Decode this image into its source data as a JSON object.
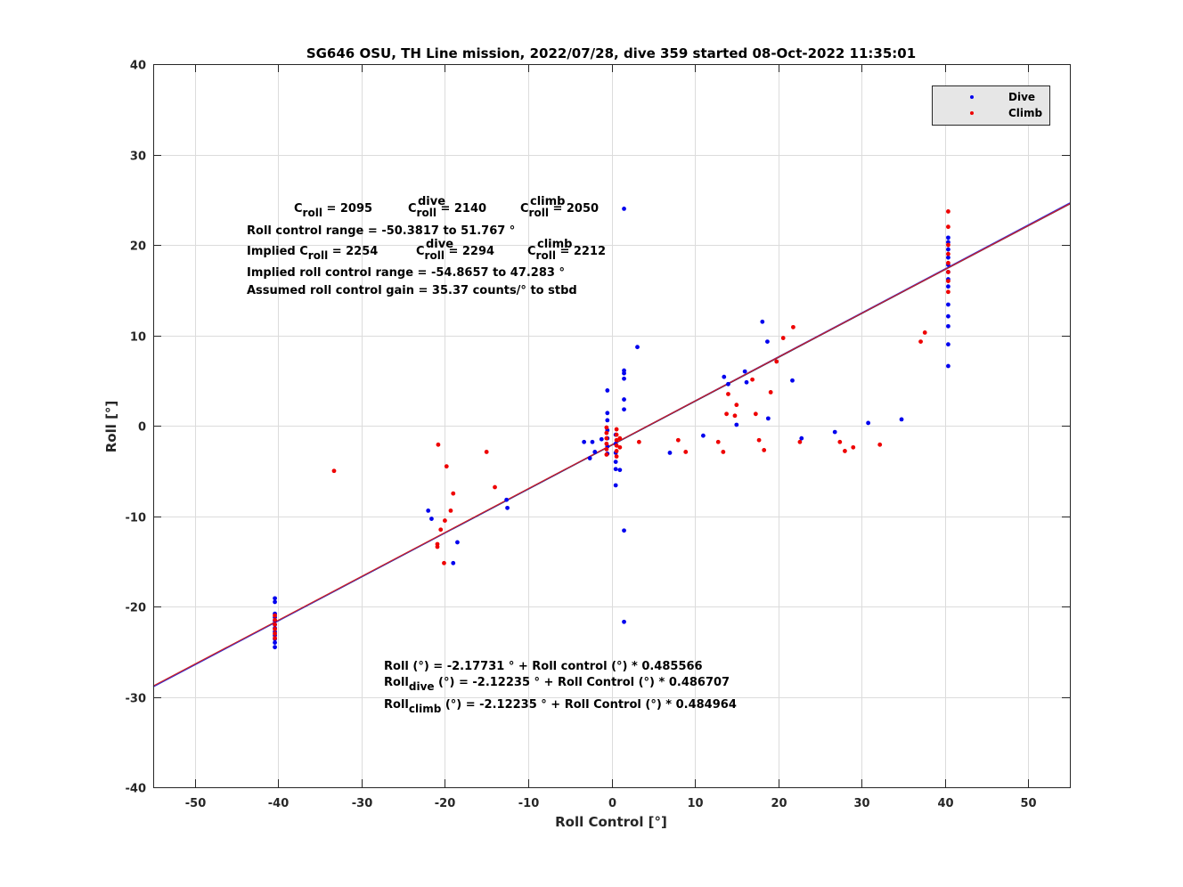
{
  "chart_data": {
    "type": "scatter",
    "title": "SG646 OSU, TH Line mission, 2022/07/28, dive 359 started 08-Oct-2022 11:35:01",
    "xlabel": "Roll Control [°]",
    "ylabel": "Roll [°]",
    "xlim": [
      -55,
      55
    ],
    "ylim": [
      -40,
      40
    ],
    "xticks": [
      -50,
      -40,
      -30,
      -20,
      -10,
      0,
      10,
      20,
      30,
      40,
      50
    ],
    "yticks": [
      -40,
      -30,
      -20,
      -10,
      0,
      10,
      20,
      30,
      40
    ],
    "xtick_labels": [
      "-50",
      "-40",
      "-30",
      "-20",
      "-10",
      "0",
      "10",
      "20",
      "30",
      "40",
      "50"
    ],
    "ytick_labels": [
      "-40",
      "-30",
      "-20",
      "-10",
      "0",
      "10",
      "20",
      "30",
      "40"
    ],
    "grid": true,
    "legend_position": "top-right",
    "series": [
      {
        "name": "Dive",
        "color": "#0000ee",
        "points": [
          [
            -40.4,
            -19.1
          ],
          [
            -40.4,
            -19.5
          ],
          [
            -40.4,
            -20.8
          ],
          [
            -40.4,
            -21.2
          ],
          [
            -40.4,
            -21.6
          ],
          [
            -40.4,
            -22.0
          ],
          [
            -40.4,
            -22.4
          ],
          [
            -40.4,
            -22.8
          ],
          [
            -40.4,
            -23.2
          ],
          [
            -40.4,
            -23.6
          ],
          [
            -40.4,
            -24.0
          ],
          [
            -40.4,
            -24.5
          ],
          [
            -22.0,
            -9.4
          ],
          [
            -21.6,
            -10.3
          ],
          [
            -19.0,
            -15.2
          ],
          [
            -18.5,
            -12.9
          ],
          [
            -12.6,
            -8.2
          ],
          [
            -12.5,
            -9.1
          ],
          [
            -3.3,
            -1.8
          ],
          [
            -2.6,
            -3.6
          ],
          [
            -2.3,
            -1.8
          ],
          [
            -2.0,
            -2.9
          ],
          [
            -1.2,
            -1.5
          ],
          [
            -0.5,
            3.9
          ],
          [
            -0.5,
            1.4
          ],
          [
            -0.5,
            0.6
          ],
          [
            -0.5,
            -0.5
          ],
          [
            -0.5,
            -1.4
          ],
          [
            -0.5,
            -2.3
          ],
          [
            -0.5,
            -3.1
          ],
          [
            0.5,
            -1.0
          ],
          [
            0.5,
            -2.0
          ],
          [
            0.5,
            -3.0
          ],
          [
            0.5,
            -4.0
          ],
          [
            0.5,
            -4.8
          ],
          [
            0.5,
            -6.6
          ],
          [
            1.0,
            -4.9
          ],
          [
            1.5,
            24.0
          ],
          [
            1.5,
            6.1
          ],
          [
            1.5,
            5.8
          ],
          [
            1.5,
            5.2
          ],
          [
            1.5,
            2.9
          ],
          [
            1.5,
            1.8
          ],
          [
            1.5,
            -11.6
          ],
          [
            1.5,
            -21.7
          ],
          [
            3.1,
            8.7
          ],
          [
            7.0,
            -3.0
          ],
          [
            11.0,
            -1.1
          ],
          [
            13.5,
            5.4
          ],
          [
            14.0,
            4.6
          ],
          [
            15.0,
            0.1
          ],
          [
            16.0,
            6.0
          ],
          [
            16.2,
            4.8
          ],
          [
            18.1,
            11.5
          ],
          [
            18.7,
            9.3
          ],
          [
            18.8,
            0.8
          ],
          [
            21.7,
            5.0
          ],
          [
            22.8,
            -1.4
          ],
          [
            26.8,
            -0.7
          ],
          [
            30.8,
            0.3
          ],
          [
            34.8,
            0.7
          ],
          [
            40.4,
            6.6
          ],
          [
            40.4,
            9.0
          ],
          [
            40.4,
            11.0
          ],
          [
            40.4,
            12.1
          ],
          [
            40.4,
            13.4
          ],
          [
            40.4,
            15.4
          ],
          [
            40.4,
            16.2
          ],
          [
            40.4,
            17.0
          ],
          [
            40.4,
            17.8
          ],
          [
            40.4,
            18.6
          ],
          [
            40.4,
            19.5
          ],
          [
            40.4,
            20.3
          ],
          [
            40.4,
            20.8
          ]
        ]
      },
      {
        "name": "Climb",
        "color": "#ee0000",
        "points": [
          [
            -40.4,
            -21.0
          ],
          [
            -40.4,
            -21.5
          ],
          [
            -40.4,
            -22.0
          ],
          [
            -40.4,
            -22.5
          ],
          [
            -40.4,
            -23.0
          ],
          [
            -40.4,
            -23.5
          ],
          [
            -33.3,
            -5.0
          ],
          [
            -20.8,
            -2.1
          ],
          [
            -20.5,
            -11.5
          ],
          [
            -20.0,
            -10.5
          ],
          [
            -19.8,
            -4.5
          ],
          [
            -20.1,
            -15.2
          ],
          [
            -20.9,
            -13.4
          ],
          [
            -20.9,
            -13.1
          ],
          [
            -19.3,
            -9.4
          ],
          [
            -19.0,
            -7.5
          ],
          [
            -15.0,
            -2.9
          ],
          [
            -14.0,
            -6.8
          ],
          [
            -0.6,
            -0.2
          ],
          [
            -0.6,
            -0.8
          ],
          [
            -0.6,
            -1.4
          ],
          [
            -0.6,
            -2.0
          ],
          [
            -0.6,
            -2.6
          ],
          [
            -0.6,
            -3.2
          ],
          [
            0.6,
            -0.4
          ],
          [
            0.6,
            -1.0
          ],
          [
            0.6,
            -1.6
          ],
          [
            0.6,
            -2.2
          ],
          [
            0.6,
            -2.8
          ],
          [
            0.6,
            -3.4
          ],
          [
            1.0,
            -1.4
          ],
          [
            1.0,
            -2.4
          ],
          [
            3.3,
            -1.8
          ],
          [
            8.0,
            -1.6
          ],
          [
            8.9,
            -2.9
          ],
          [
            12.8,
            -1.8
          ],
          [
            13.4,
            -2.9
          ],
          [
            13.8,
            1.3
          ],
          [
            14.0,
            3.5
          ],
          [
            14.8,
            1.1
          ],
          [
            15.0,
            2.3
          ],
          [
            16.9,
            5.1
          ],
          [
            17.3,
            1.3
          ],
          [
            17.7,
            -1.6
          ],
          [
            18.3,
            -2.7
          ],
          [
            19.1,
            3.7
          ],
          [
            19.8,
            7.1
          ],
          [
            20.6,
            9.7
          ],
          [
            21.8,
            10.9
          ],
          [
            22.6,
            -1.8
          ],
          [
            27.4,
            -1.8
          ],
          [
            28.0,
            -2.8
          ],
          [
            29.0,
            -2.4
          ],
          [
            32.2,
            -2.1
          ],
          [
            37.1,
            9.3
          ],
          [
            37.6,
            10.3
          ],
          [
            40.4,
            14.8
          ],
          [
            40.4,
            16.0
          ],
          [
            40.4,
            17.0
          ],
          [
            40.4,
            18.0
          ],
          [
            40.4,
            19.0
          ],
          [
            40.4,
            20.0
          ],
          [
            40.4,
            22.0
          ],
          [
            40.4,
            23.7
          ]
        ]
      }
    ],
    "fit_lines": [
      {
        "intercept": -2.17731,
        "slope": 0.485566,
        "color": "#1a1a6e"
      },
      {
        "intercept": -2.12235,
        "slope": 0.486707,
        "color": "#3030e0"
      },
      {
        "intercept": -2.12235,
        "slope": 0.484964,
        "color": "#d02020"
      }
    ],
    "annotations": {
      "c_roll_label": "C",
      "c_roll_sub": "roll",
      "c_roll_value": " = 2095",
      "c_dive_label": "C",
      "c_dive_sub": "roll",
      "c_dive_sup": "dive",
      "c_dive_value": " = 2140",
      "c_climb_label": "C",
      "c_climb_sub": "roll",
      "c_climb_sup": "climb",
      "c_climb_value": " = 2050",
      "range_line": "Roll control range = -50.3817 to 51.767 °",
      "implied_label": "Implied C",
      "implied_sub": "roll",
      "implied_value": " = 2254",
      "implied_dive_label": "C",
      "implied_dive_sub": "roll",
      "implied_dive_sup": "dive",
      "implied_dive_value": " = 2294",
      "implied_climb_label": "C",
      "implied_climb_sub": "roll",
      "implied_climb_sup": "climb",
      "implied_climb_value": " = 2212",
      "implied_range_line": "Implied roll control range = -54.8657 to 47.283 °",
      "gain_line": "Assumed roll control gain = 35.37 counts/° to stbd",
      "eq_all": "Roll (°) = -2.17731 ° + Roll control (°) * 0.485566",
      "eq_dive_label": "Roll",
      "eq_dive_sub": "dive",
      "eq_dive_rest": " (°) = -2.12235 ° + Roll Control (°) * 0.486707",
      "eq_climb_label": "Roll",
      "eq_climb_sub": "climb",
      "eq_climb_rest": " (°) = -2.12235 ° + Roll Control (°) * 0.484964"
    }
  }
}
